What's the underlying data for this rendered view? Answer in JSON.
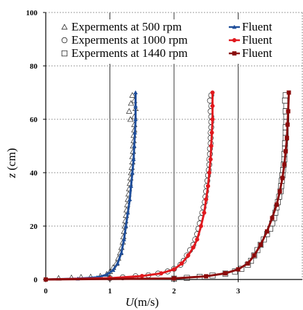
{
  "chart_data": {
    "type": "scatter",
    "title": "",
    "xlabel_italic": "U",
    "xlabel_rest": "(m/s)",
    "ylabel_italic": "z",
    "ylabel_rest": " (cm)",
    "xlim": [
      0,
      4
    ],
    "ylim": [
      0,
      100
    ],
    "x_ticks": [
      0,
      1,
      2,
      3
    ],
    "y_ticks": [
      0,
      20,
      40,
      60,
      80,
      100
    ],
    "grid": true,
    "legend_position": "top",
    "legend": [
      {
        "marker": "triangle",
        "experiment_label": "Experments at 500 rpm",
        "line_label": "Fluent",
        "line_color": "#1f4e9a"
      },
      {
        "marker": "circle",
        "experiment_label": "Experments at 1000 rpm",
        "line_label": "Fluent",
        "line_color": "#e0191e"
      },
      {
        "marker": "square",
        "experiment_label": "Experments at 1440 rpm",
        "line_label": "Fluent",
        "line_color": "#8b0a0a"
      }
    ],
    "series": [
      {
        "kind": "experiment",
        "marker": "triangle",
        "points": [
          [
            0.2,
            0.5
          ],
          [
            0.4,
            0.7
          ],
          [
            0.55,
            0.9
          ],
          [
            0.7,
            1.0
          ],
          [
            0.85,
            1.3
          ],
          [
            0.95,
            2.0
          ],
          [
            1.0,
            3.0
          ],
          [
            1.05,
            4.5
          ],
          [
            1.1,
            6
          ],
          [
            1.13,
            8
          ],
          [
            1.16,
            10
          ],
          [
            1.18,
            12
          ],
          [
            1.2,
            14
          ],
          [
            1.21,
            16
          ],
          [
            1.22,
            18
          ],
          [
            1.23,
            20
          ],
          [
            1.24,
            22
          ],
          [
            1.25,
            24
          ],
          [
            1.26,
            26
          ],
          [
            1.27,
            28
          ],
          [
            1.28,
            30
          ],
          [
            1.29,
            32
          ],
          [
            1.3,
            34
          ],
          [
            1.31,
            36
          ],
          [
            1.32,
            38
          ],
          [
            1.33,
            40
          ],
          [
            1.34,
            42
          ],
          [
            1.35,
            44
          ],
          [
            1.35,
            46
          ],
          [
            1.36,
            48
          ],
          [
            1.36,
            50
          ],
          [
            1.37,
            52
          ],
          [
            1.37,
            54
          ],
          [
            1.38,
            56
          ],
          [
            1.38,
            58
          ],
          [
            1.32,
            60
          ],
          [
            1.38,
            61
          ],
          [
            1.3,
            63
          ],
          [
            1.4,
            64
          ],
          [
            1.33,
            66
          ],
          [
            1.38,
            67
          ],
          [
            1.35,
            69
          ]
        ]
      },
      {
        "kind": "fluent",
        "color": "#1f4e9a",
        "marker": "triangle",
        "points": [
          [
            0.0,
            0
          ],
          [
            0.5,
            0.3
          ],
          [
            0.8,
            0.8
          ],
          [
            0.95,
            1.8
          ],
          [
            1.05,
            3.5
          ],
          [
            1.12,
            6
          ],
          [
            1.18,
            10
          ],
          [
            1.22,
            15
          ],
          [
            1.25,
            20
          ],
          [
            1.28,
            25
          ],
          [
            1.31,
            30
          ],
          [
            1.33,
            35
          ],
          [
            1.35,
            40
          ],
          [
            1.37,
            45
          ],
          [
            1.38,
            50
          ],
          [
            1.39,
            55
          ],
          [
            1.4,
            60
          ],
          [
            1.4,
            65
          ],
          [
            1.4,
            70
          ]
        ]
      },
      {
        "kind": "experiment",
        "marker": "circle",
        "points": [
          [
            1.0,
            0.5
          ],
          [
            1.2,
            0.8
          ],
          [
            1.4,
            1.2
          ],
          [
            1.6,
            1.6
          ],
          [
            1.75,
            2.2
          ],
          [
            1.9,
            3.0
          ],
          [
            2.0,
            4.0
          ],
          [
            2.1,
            5.5
          ],
          [
            2.15,
            7
          ],
          [
            2.2,
            9
          ],
          [
            2.25,
            11
          ],
          [
            2.3,
            13
          ],
          [
            2.33,
            15
          ],
          [
            2.36,
            17
          ],
          [
            2.38,
            19
          ],
          [
            2.4,
            21
          ],
          [
            2.42,
            23
          ],
          [
            2.44,
            25
          ],
          [
            2.46,
            27
          ],
          [
            2.48,
            29
          ],
          [
            2.49,
            31
          ],
          [
            2.5,
            33
          ],
          [
            2.51,
            35
          ],
          [
            2.52,
            37
          ],
          [
            2.53,
            39
          ],
          [
            2.54,
            41
          ],
          [
            2.55,
            43
          ],
          [
            2.55,
            45
          ],
          [
            2.56,
            47
          ],
          [
            2.56,
            49
          ],
          [
            2.57,
            51
          ],
          [
            2.57,
            53
          ],
          [
            2.57,
            55
          ],
          [
            2.58,
            57
          ],
          [
            2.58,
            59
          ],
          [
            2.58,
            61
          ],
          [
            2.57,
            63
          ],
          [
            2.58,
            65
          ],
          [
            2.56,
            67
          ],
          [
            2.58,
            69
          ]
        ]
      },
      {
        "kind": "fluent",
        "color": "#e0191e",
        "marker": "circle",
        "points": [
          [
            0.0,
            0
          ],
          [
            1.0,
            0.5
          ],
          [
            1.5,
            1.3
          ],
          [
            1.8,
            2.3
          ],
          [
            2.0,
            3.8
          ],
          [
            2.12,
            6
          ],
          [
            2.22,
            9
          ],
          [
            2.3,
            12
          ],
          [
            2.36,
            15
          ],
          [
            2.42,
            20
          ],
          [
            2.47,
            25
          ],
          [
            2.5,
            30
          ],
          [
            2.53,
            35
          ],
          [
            2.55,
            40
          ],
          [
            2.57,
            45
          ],
          [
            2.58,
            50
          ],
          [
            2.59,
            55
          ],
          [
            2.6,
            60
          ],
          [
            2.6,
            65
          ],
          [
            2.6,
            70
          ]
        ]
      },
      {
        "kind": "experiment",
        "marker": "square",
        "points": [
          [
            2.0,
            0.3
          ],
          [
            2.2,
            0.6
          ],
          [
            2.4,
            1.0
          ],
          [
            2.6,
            1.5
          ],
          [
            2.8,
            2.2
          ],
          [
            2.95,
            3.0
          ],
          [
            3.05,
            4.0
          ],
          [
            3.15,
            5.5
          ],
          [
            3.2,
            7
          ],
          [
            3.25,
            9
          ],
          [
            3.3,
            11
          ],
          [
            3.35,
            13
          ],
          [
            3.4,
            15
          ],
          [
            3.45,
            17
          ],
          [
            3.5,
            19
          ],
          [
            3.53,
            21
          ],
          [
            3.56,
            23
          ],
          [
            3.58,
            25
          ],
          [
            3.6,
            27
          ],
          [
            3.62,
            29
          ],
          [
            3.64,
            31
          ],
          [
            3.66,
            33
          ],
          [
            3.67,
            35
          ],
          [
            3.68,
            37
          ],
          [
            3.69,
            39
          ],
          [
            3.7,
            41
          ],
          [
            3.71,
            43
          ],
          [
            3.72,
            45
          ],
          [
            3.72,
            47
          ],
          [
            3.73,
            49
          ],
          [
            3.73,
            51
          ],
          [
            3.74,
            53
          ],
          [
            3.74,
            55
          ],
          [
            3.74,
            57
          ],
          [
            3.75,
            59
          ],
          [
            3.75,
            61
          ],
          [
            3.74,
            63
          ],
          [
            3.75,
            65
          ],
          [
            3.73,
            67
          ],
          [
            3.74,
            69
          ]
        ]
      },
      {
        "kind": "fluent",
        "color": "#8b0a0a",
        "marker": "square",
        "points": [
          [
            0.0,
            0
          ],
          [
            2.0,
            0.4
          ],
          [
            2.5,
            1.2
          ],
          [
            2.8,
            2.3
          ],
          [
            3.0,
            3.8
          ],
          [
            3.15,
            6
          ],
          [
            3.25,
            9
          ],
          [
            3.35,
            13
          ],
          [
            3.45,
            18
          ],
          [
            3.53,
            23
          ],
          [
            3.6,
            28
          ],
          [
            3.65,
            33
          ],
          [
            3.69,
            38
          ],
          [
            3.72,
            43
          ],
          [
            3.74,
            48
          ],
          [
            3.76,
            53
          ],
          [
            3.77,
            58
          ],
          [
            3.78,
            63
          ],
          [
            3.79,
            70
          ]
        ]
      }
    ]
  }
}
